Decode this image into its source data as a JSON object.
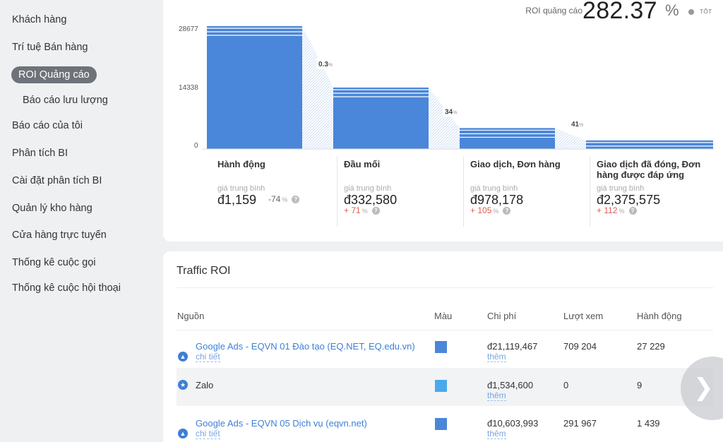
{
  "sidebar": {
    "items": [
      {
        "label": "Khách hàng"
      },
      {
        "label": "Trí tuệ Bán hàng"
      },
      {
        "label": "ROI Quảng cáo"
      },
      {
        "label": "Báo cáo lưu lượng"
      },
      {
        "label": "Báo cáo của tôi"
      },
      {
        "label": "Phân tích BI"
      },
      {
        "label": "Cài đặt phân tích BI"
      },
      {
        "label": "Quản lý kho hàng"
      },
      {
        "label": "Cửa hàng trực tuyến"
      },
      {
        "label": "Thống kê cuộc gọi"
      },
      {
        "label": "Thống kê cuộc hội thoại"
      }
    ]
  },
  "roi": {
    "label": "ROI quảng cáo",
    "value": "282.37",
    "unit": "%",
    "status": "TỐT"
  },
  "funnel": {
    "y_ticks": [
      "28677",
      "14338",
      "0"
    ],
    "values": [
      28677,
      14338,
      4875,
      2000
    ],
    "conversions": [
      {
        "value": "0.3",
        "unit": "%"
      },
      {
        "value": "34",
        "unit": "%"
      },
      {
        "value": "41",
        "unit": "%"
      }
    ],
    "stages": [
      {
        "name": "Hành động",
        "sub": "giá trung bình",
        "price": "đ1,159",
        "delta": "-74",
        "delta_unit": "%"
      },
      {
        "name": "Đầu mối",
        "sub": "giá trung bình",
        "price": "đ332,580",
        "delta": "+ 71",
        "delta_unit": "%"
      },
      {
        "name": "Giao dịch, Đơn hàng",
        "sub": "giá trung bình",
        "price": "đ978,178",
        "delta": "+ 105",
        "delta_unit": "%"
      },
      {
        "name": "Giao dịch đã đóng, Đơn hàng được đáp ứng",
        "sub": "giá trung bình",
        "price": "đ2,375,575",
        "delta": "+ 112",
        "delta_unit": "%"
      }
    ]
  },
  "traffic": {
    "title": "Traffic ROI",
    "columns": {
      "source": "Nguồn",
      "color": "Màu",
      "cost": "Chi phí",
      "views": "Lượt xem",
      "actions": "Hành động"
    },
    "rows": [
      {
        "source": "Google Ads - EQVN 01 Đào tạo (EQ.NET, EQ.edu.vn)",
        "detail": "chi tiết",
        "color": "#4a86d9",
        "cost": "đ21,119,467",
        "more": "thêm",
        "views": "709 204",
        "actions": "27 229",
        "icon": "google-ads-icon"
      },
      {
        "source": "Zalo",
        "detail": "",
        "color": "#4aa9ea",
        "cost": "đ1,534,600",
        "more": "thêm",
        "views": "0",
        "actions": "9",
        "icon": "star-icon"
      },
      {
        "source": "Google Ads - EQVN 05 Dịch vụ (eqvn.net)",
        "detail": "chi tiết",
        "color": "#4a86d9",
        "cost": "đ10,603,993",
        "more": "thêm",
        "views": "291 967",
        "actions": "1 439",
        "icon": "google-ads-icon"
      }
    ]
  },
  "colors": {
    "accent": "#3d7fd6",
    "bar": "#4a86d9",
    "positive": "#e05a4f"
  },
  "icons": {
    "next": "chevron-right-icon",
    "help": "question-icon"
  }
}
